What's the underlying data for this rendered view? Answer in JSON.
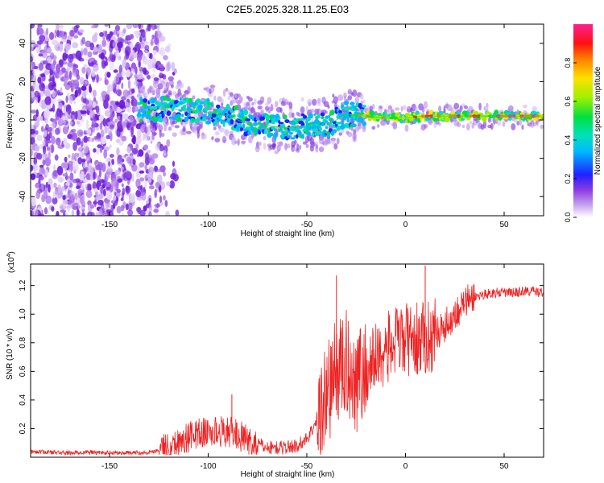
{
  "title": "C2E5.2025.328.11.25.E03",
  "colors": {
    "snr_line": "#ee2222",
    "ridge": "#22dd33",
    "colormap": [
      "#ffffff",
      "#d8c8f0",
      "#9e5ce8",
      "#6a1ad8",
      "#2020ff",
      "#00c8ff",
      "#00e070",
      "#c8f000",
      "#ffb000",
      "#ff2020",
      "#ff2090"
    ]
  },
  "chart_data": [
    {
      "type": "heatmap",
      "xlabel": "Height of straight line (km)",
      "ylabel": "Frequency (Hz)",
      "xlim": [
        -190,
        70
      ],
      "ylim": [
        -50,
        50
      ],
      "xticks": [
        -150,
        -100,
        -50,
        0,
        50
      ],
      "xtick_labels": [
        "-150",
        "-100",
        "-50",
        "0",
        "50"
      ],
      "yticks": [
        -40,
        -20,
        0,
        20,
        40
      ],
      "ytick_labels": [
        "-40",
        "-20",
        "0",
        "20",
        "40"
      ],
      "ridge_x": [
        -130,
        -120,
        -110,
        -100,
        -90,
        -80,
        -70,
        -60,
        -50,
        -40,
        -30,
        -20,
        -10,
        0,
        10,
        20,
        30,
        40,
        50,
        60,
        70
      ],
      "ridge_freq": [
        5,
        6,
        5,
        4,
        2,
        -2,
        -3,
        -4,
        -3,
        -3,
        3,
        2,
        1,
        1,
        2,
        2,
        2,
        2,
        2,
        2,
        2
      ],
      "colorbar": {
        "label": "Normalized spectral amplitude",
        "range": [
          0,
          1
        ],
        "ticks": [
          0.0,
          0.2,
          0.4,
          0.6,
          0.8
        ],
        "tick_labels": [
          "0.0",
          "0.2",
          "0.4",
          "0.6",
          "0.8"
        ]
      }
    },
    {
      "type": "line",
      "xlabel": "Height of straight line (km)",
      "ylabel": "SNR (10 * v/v)",
      "yscale_label": "(x10",
      "yscale_exp": "4",
      "yscale_close": ")",
      "xlim": [
        -190,
        70
      ],
      "ylim": [
        0,
        13500
      ],
      "xticks": [
        -150,
        -100,
        -50,
        0,
        50
      ],
      "xtick_labels": [
        "-150",
        "-100",
        "-50",
        "0",
        "50"
      ],
      "yticks": [
        2000,
        4000,
        6000,
        8000,
        10000,
        12000
      ],
      "ytick_labels": [
        "0.2",
        "0.4",
        "0.6",
        "0.8",
        "1.0",
        "1.2"
      ],
      "series": [
        {
          "name": "SNR",
          "x": [
            -190,
            -180,
            -170,
            -160,
            -150,
            -140,
            -130,
            -125,
            -120,
            -115,
            -110,
            -105,
            -100,
            -95,
            -90,
            -85,
            -80,
            -75,
            -70,
            -65,
            -60,
            -55,
            -50,
            -45,
            -40,
            -35,
            -30,
            -25,
            -20,
            -15,
            -10,
            -5,
            0,
            5,
            10,
            15,
            20,
            25,
            30,
            35,
            40,
            45,
            50,
            55,
            60,
            65,
            70
          ],
          "values": [
            400,
            350,
            300,
            350,
            300,
            300,
            350,
            500,
            700,
            1000,
            1400,
            1700,
            1700,
            1800,
            1800,
            1600,
            1100,
            900,
            700,
            650,
            700,
            800,
            1300,
            2500,
            4500,
            6000,
            6500,
            5500,
            6000,
            7000,
            7500,
            8000,
            8200,
            8200,
            8300,
            8600,
            9200,
            10000,
            10800,
            11200,
            11400,
            11500,
            11500,
            11500,
            11600,
            11600,
            11500
          ]
        }
      ],
      "spikes": [
        {
          "x": -88,
          "y": 4400
        },
        {
          "x": -35,
          "y": 12700
        },
        {
          "x": 10,
          "y": 13400
        }
      ]
    }
  ]
}
